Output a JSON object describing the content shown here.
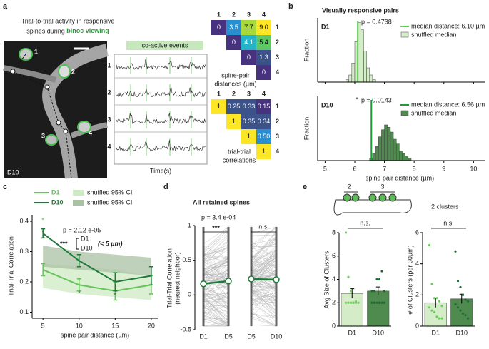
{
  "panel_labels": [
    "a",
    "b",
    "c",
    "d",
    "e"
  ],
  "a": {
    "title": [
      "Trial-to-trial activity in responsive",
      "spines during "
    ],
    "title_highlight": "binoc viewing",
    "spine_labels": [
      "1",
      "2",
      "3",
      "4"
    ],
    "image_label": "D10",
    "events_label": "co-active events",
    "trace_labels": [
      "1",
      "2",
      "3",
      "4"
    ],
    "time_label": "Time(s)",
    "distances": {
      "header": [
        "1",
        "2",
        "3",
        "4"
      ],
      "rows": [
        [
          "0",
          "3.5",
          "7.7",
          "9.0"
        ],
        [
          "0",
          "4.1",
          "5.4"
        ],
        [
          "0",
          "1.3"
        ],
        [
          "0"
        ]
      ],
      "caption": [
        "spine-pair",
        "distances (µm)"
      ]
    },
    "correlations": {
      "header": [
        "1",
        "2",
        "3",
        "4"
      ],
      "rows": [
        [
          "1",
          "0.25",
          "0.33",
          "0.15"
        ],
        [
          "1",
          "0.35",
          "0.34"
        ],
        [
          "1",
          "0.50"
        ],
        [
          "1"
        ]
      ],
      "caption": [
        "trial-trial",
        "correlations"
      ]
    }
  },
  "b": {
    "title": "Visually responsive pairs",
    "xlabel": "spine pair distance (µm)",
    "ylabel": "Fraction",
    "xlim": [
      4.75,
      10.4
    ],
    "xticks": [
      5,
      6,
      7,
      8,
      9,
      10
    ],
    "ylim": [
      0,
      0.27
    ],
    "plots": [
      {
        "name": "D1",
        "p_label": "p = 0.4738",
        "median": 6.1,
        "median_label": "median distance: 6.10 µm",
        "shuffled_label": "shuffled median",
        "color": "#d4ecc8",
        "line_color": "#5ecb52",
        "bins": [
          5.7,
          5.8,
          5.9,
          6.0,
          6.1,
          6.2,
          6.3,
          6.4,
          6.5,
          6.6,
          6.7
        ],
        "counts": [
          0.01,
          0.03,
          0.08,
          0.17,
          0.25,
          0.22,
          0.13,
          0.06,
          0.03,
          0.01
        ]
      },
      {
        "name": "D10",
        "star": "*",
        "p_label": "p = 0.0143",
        "median": 6.56,
        "median_label": "median distance: 6.56 µm",
        "shuffled_label": "shuffled median",
        "color": "#4f8a4f",
        "line_color": "#1d9a3a",
        "bins": [
          6.5,
          6.6,
          6.7,
          6.8,
          6.9,
          7.0,
          7.1,
          7.2,
          7.3,
          7.4,
          7.5,
          7.6,
          7.7,
          7.8,
          7.9
        ],
        "counts": [
          0.01,
          0.03,
          0.06,
          0.1,
          0.13,
          0.15,
          0.14,
          0.12,
          0.09,
          0.07,
          0.04,
          0.03,
          0.02,
          0.01
        ]
      }
    ]
  },
  "c": {
    "ylabel": "Trial-Trial Correlation",
    "xlabel": "spine pair distance (µm)",
    "x": [
      5,
      10,
      15,
      20
    ],
    "xlim": [
      3.5,
      21
    ],
    "xticks": [
      5,
      10,
      15,
      20
    ],
    "ylim": [
      0.08,
      0.42
    ],
    "yticks": [
      0.1,
      0.2,
      0.3,
      0.4
    ],
    "series": [
      {
        "name": "D1",
        "color": "#66c35a",
        "values": [
          0.24,
          0.19,
          0.17,
          0.19
        ],
        "errors": [
          0.02,
          0.02,
          0.03,
          0.03
        ],
        "ci_name": "shuffled 95% CI",
        "ci_color": "#cfe9c4",
        "ci_lower": [
          0.18,
          0.16,
          0.15,
          0.14
        ],
        "ci_upper": [
          0.26,
          0.25,
          0.24,
          0.22
        ]
      },
      {
        "name": "D10",
        "color": "#1f7a3a",
        "values": [
          0.36,
          0.27,
          0.2,
          0.22
        ],
        "errors": [
          0.015,
          0.02,
          0.03,
          0.03
        ],
        "ci_name": "shuffled 95% CI",
        "ci_color": "#a9c2a3",
        "ci_lower": [
          0.25,
          0.24,
          0.23,
          0.22
        ],
        "ci_upper": [
          0.32,
          0.3,
          0.29,
          0.28
        ]
      }
    ],
    "stars": [
      "*",
      "*",
      "*",
      "*",
      "*"
    ],
    "p_label": "p = 2.12 e-05",
    "sig": "***",
    "note": "(< 5 µm)"
  },
  "d": {
    "title": "All retained spines",
    "ylabel": [
      "Trial-Trial Correlation",
      "(nearest neighbor)"
    ],
    "ylim": [
      -0.5,
      1
    ],
    "yticks": [
      -0.5,
      0,
      0.5,
      1
    ],
    "pairs": [
      {
        "labels": [
          "D1",
          "D5"
        ],
        "values": [
          0.16,
          0.2
        ],
        "p_label": "p = 3.4 e-04",
        "sig": "***"
      },
      {
        "labels": [
          "D5",
          "D10"
        ],
        "values": [
          0.23,
          0.22
        ],
        "sig": "n.s."
      }
    ]
  },
  "e": {
    "diagram_labels": [
      "2",
      "3"
    ],
    "diagram_caption": "2 clusters",
    "charts": [
      {
        "ylabel": "Avg Size of Clusters",
        "ylim": [
          0,
          8
        ],
        "yticks": [
          0,
          2,
          4,
          6,
          8
        ],
        "sig": "n.s.",
        "categories": [
          "D1",
          "D10"
        ],
        "colors": [
          "#d4ecc8",
          "#4f8a4f"
        ],
        "dot_colors": [
          "#6ccf5a",
          "#1f6a34"
        ],
        "values": [
          2.8,
          3.0
        ],
        "errors": [
          0.4,
          0.35
        ],
        "points": [
          [
            8,
            4.2,
            3,
            2,
            2,
            2,
            2,
            2,
            2,
            2,
            2.1
          ],
          [
            2,
            2,
            2,
            2,
            2,
            3,
            3,
            3,
            4,
            4,
            4.7,
            2
          ]
        ]
      },
      {
        "ylabel": "# of Clusters (per 30µm)",
        "ylim": [
          0,
          6
        ],
        "yticks": [
          0,
          2,
          4,
          6
        ],
        "sig": "n.s.",
        "categories": [
          "D1",
          "D10"
        ],
        "colors": [
          "#d4ecc8",
          "#4f8a4f"
        ],
        "dot_colors": [
          "#6ccf5a",
          "#1f6a34"
        ],
        "values": [
          1.5,
          1.75
        ],
        "errors": [
          0.3,
          0.3
        ],
        "points": [
          [
            5.2,
            2.7,
            1.8,
            1.8,
            1.6,
            1.3,
            1.2,
            1.0,
            0.9,
            0.6,
            0.5,
            0.5
          ],
          [
            4.8,
            2.9,
            2.5,
            2,
            1.7,
            1.6,
            1.4,
            1.2,
            1.0,
            0.8,
            0.7,
            0.5
          ]
        ]
      }
    ]
  }
}
